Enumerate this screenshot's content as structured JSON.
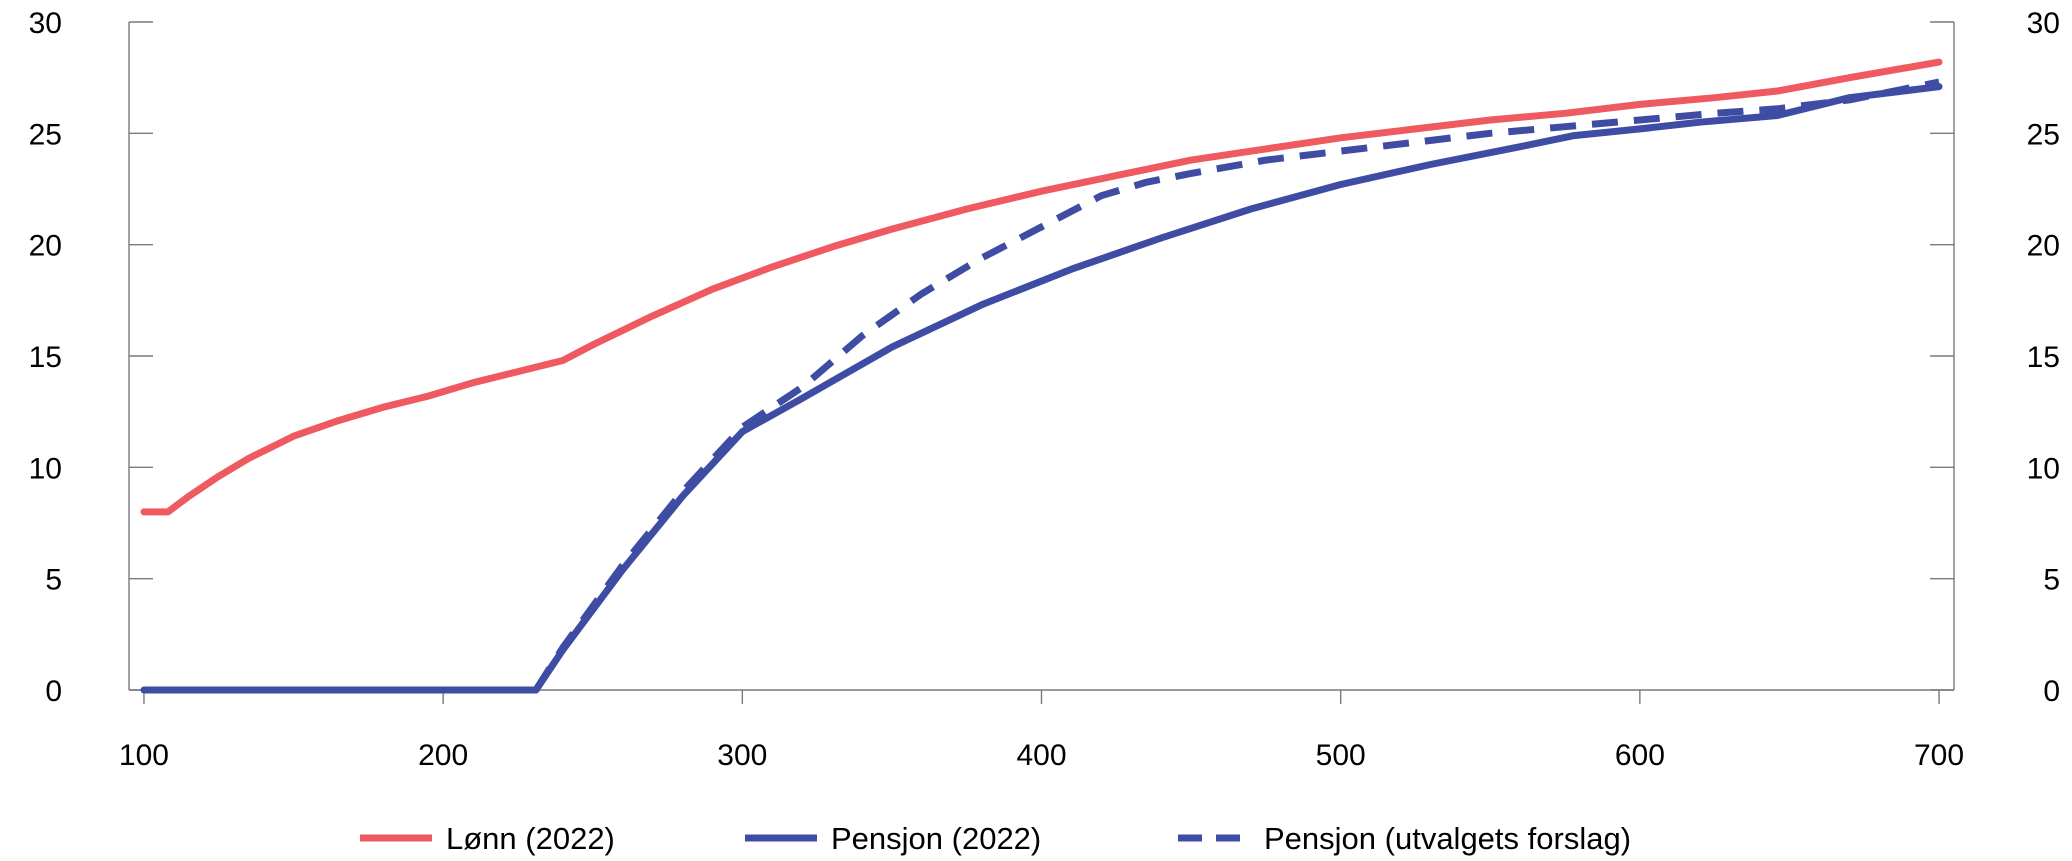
{
  "chart_data": {
    "type": "line",
    "title": "",
    "xlabel": "",
    "ylabel": "",
    "xlim": [
      95,
      705
    ],
    "ylim": [
      0,
      30
    ],
    "x_ticks": [
      100,
      200,
      300,
      400,
      500,
      600,
      700
    ],
    "y_ticks": [
      0,
      5,
      10,
      15,
      20,
      25,
      30
    ],
    "y_ticks_right": [
      0,
      5,
      10,
      15,
      20,
      25,
      30
    ],
    "grid": false,
    "legend_position": "bottom",
    "series": [
      {
        "name": "Lønn (2022)",
        "color": "#ee5a5f",
        "dash": "solid",
        "x": [
          100,
          108,
          115,
          125,
          135,
          150,
          165,
          180,
          195,
          210,
          225,
          240,
          250,
          270,
          290,
          310,
          330,
          350,
          375,
          400,
          425,
          450,
          475,
          500,
          525,
          550,
          575,
          600,
          625,
          646,
          670,
          700
        ],
        "y": [
          8.0,
          8.0,
          8.7,
          9.6,
          10.4,
          11.4,
          12.1,
          12.7,
          13.2,
          13.8,
          14.3,
          14.8,
          15.5,
          16.8,
          18.0,
          19.0,
          19.9,
          20.7,
          21.6,
          22.4,
          23.1,
          23.8,
          24.3,
          24.8,
          25.2,
          25.6,
          25.9,
          26.3,
          26.6,
          26.9,
          27.5,
          28.2
        ]
      },
      {
        "name": "Pensjon (2022)",
        "color": "#3f4ca3",
        "dash": "solid",
        "x": [
          100,
          200,
          231,
          240,
          260,
          280,
          300,
          320,
          350,
          380,
          410,
          440,
          470,
          500,
          530,
          560,
          578,
          600,
          620,
          646,
          670,
          700
        ],
        "y": [
          0,
          0,
          0,
          1.8,
          5.4,
          8.7,
          11.6,
          13.1,
          15.4,
          17.3,
          18.9,
          20.3,
          21.6,
          22.7,
          23.6,
          24.4,
          24.9,
          25.2,
          25.5,
          25.8,
          26.6,
          27.1
        ]
      },
      {
        "name": "Pensjon (utvalgets forslag)",
        "color": "#3f4ca3",
        "dash": "dashed",
        "x": [
          231,
          240,
          260,
          280,
          300,
          320,
          340,
          360,
          380,
          400,
          420,
          435,
          450,
          475,
          500,
          525,
          550,
          575,
          600,
          625,
          646,
          670,
          700
        ],
        "y": [
          0,
          1.9,
          5.6,
          8.9,
          11.8,
          13.6,
          15.9,
          17.8,
          19.4,
          20.8,
          22.2,
          22.8,
          23.2,
          23.8,
          24.2,
          24.6,
          25.0,
          25.3,
          25.6,
          25.9,
          26.1,
          26.5,
          27.3
        ]
      }
    ]
  }
}
